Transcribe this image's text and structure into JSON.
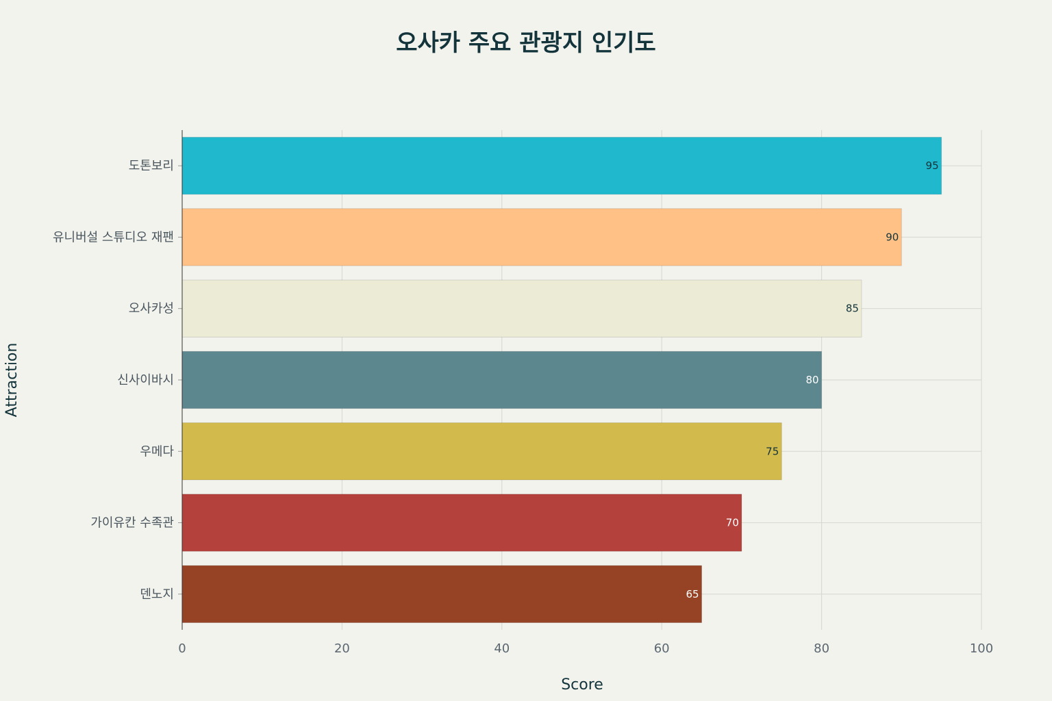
{
  "chart_data": {
    "type": "bar",
    "orientation": "horizontal",
    "title": "오사카 주요 관광지 인기도",
    "xlabel": "Score",
    "ylabel": "Attraction",
    "xlim": [
      0,
      100
    ],
    "xticks": [
      0,
      20,
      40,
      60,
      80,
      100
    ],
    "grid": true,
    "categories": [
      "도톤보리",
      "유니버설 스튜디오 재팬",
      "오사카성",
      "신사이바시",
      "우메다",
      "가이유칸 수족관",
      "덴노지"
    ],
    "values": [
      95,
      90,
      85,
      80,
      75,
      70,
      65
    ],
    "colors": [
      "#1fb8cd",
      "#ffc185",
      "#eceBd5",
      "#5d878f",
      "#d2ba4c",
      "#b4413c",
      "#964325"
    ],
    "label_colors": [
      "#13343b",
      "#13343b",
      "#13343b",
      "#ffffff",
      "#13343b",
      "#ffffff",
      "#ffffff"
    ]
  }
}
